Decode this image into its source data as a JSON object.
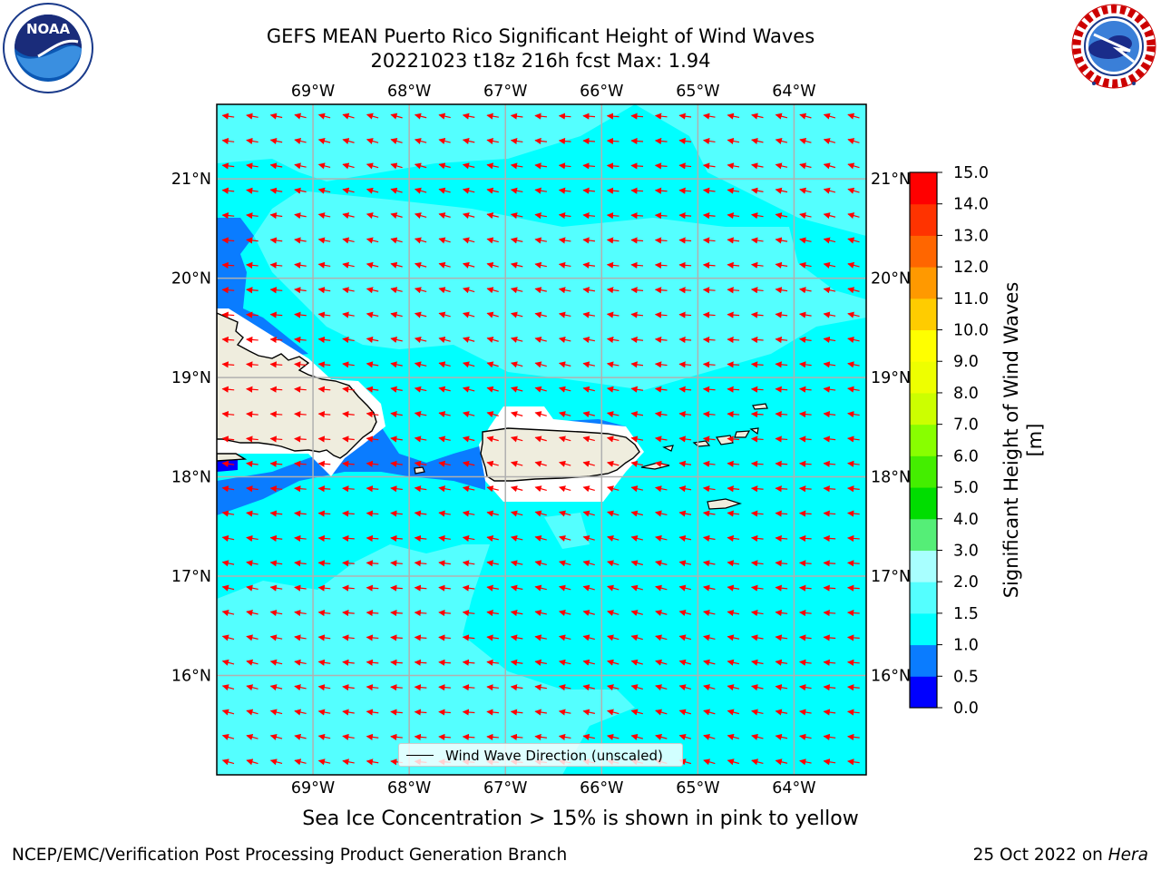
{
  "title": {
    "line1": "GEFS MEAN Puerto Rico Significant Height of Wind Waves",
    "line2": "20221023 t18z 216h fcst   Max: 1.94"
  },
  "logos": {
    "left": "noaa-logo",
    "right": "national-weather-service-logo",
    "left_text": "NOAA",
    "left_ring_text": "NATIONAL OCEANIC AND ATMOSPHERIC ADMINISTRATION · U.S. DEPARTMENT OF COMMERCE",
    "right_ring_text": "NATIONAL WEATHER SERVICE"
  },
  "map": {
    "lon_labels": [
      "69°W",
      "68°W",
      "67°W",
      "66°W",
      "65°W",
      "64°W"
    ],
    "lat_labels": [
      "21°N",
      "20°N",
      "19°N",
      "18°N",
      "17°N",
      "16°N"
    ],
    "lon_values": [
      -69,
      -68,
      -67,
      -66,
      -65,
      -64
    ],
    "lat_values": [
      21,
      20,
      19,
      18,
      17,
      16
    ],
    "extent": {
      "lon_min": -70.0,
      "lon_max": -63.25,
      "lat_min": 15.0,
      "lat_max": 21.75
    },
    "arrow_color": "#ff0000",
    "grid_color": "#b0b0b0",
    "land_color": "#efedde"
  },
  "legend": {
    "label": "Wind Wave Direction (unscaled)"
  },
  "colorbar": {
    "title": "Significant Height of Wind Waves [m]",
    "ticks": [
      "0.0",
      "0.5",
      "1.0",
      "1.5",
      "2.0",
      "3.0",
      "4.0",
      "5.0",
      "6.0",
      "7.0",
      "8.0",
      "9.0",
      "10.0",
      "11.0",
      "12.0",
      "13.0",
      "14.0",
      "15.0"
    ],
    "colors": [
      "#0000ff",
      "#0a7cff",
      "#00ffff",
      "#54ffff",
      "#a8ffff",
      "#55ee77",
      "#00dd00",
      "#44ee00",
      "#88ff00",
      "#ccff00",
      "#eeff00",
      "#ffff00",
      "#ffcc00",
      "#ff9900",
      "#ff6600",
      "#ff3300",
      "#ff0000"
    ]
  },
  "footer": {
    "ice_note": "Sea Ice Concentration > 15% is shown in pink to yellow",
    "left": "NCEP/EMC/Verification Post Processing Product Generation Branch",
    "right_prefix": "25 Oct 2022 on ",
    "right_host": "Hera"
  }
}
